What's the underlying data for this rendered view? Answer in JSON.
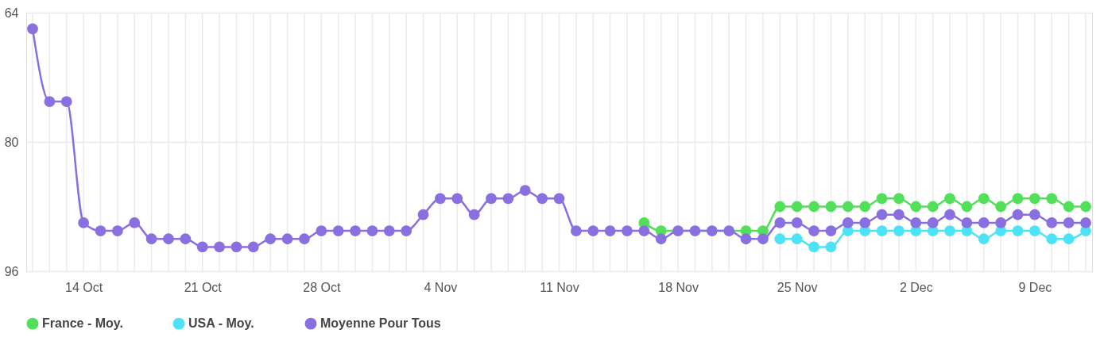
{
  "chart_data": {
    "type": "line",
    "x": [
      "--10-11",
      "--10-12",
      "--10-13",
      "--10-14",
      "--10-15",
      "--10-16",
      "--10-17",
      "--10-18",
      "--10-19",
      "--10-20",
      "--10-21",
      "--10-22",
      "--10-23",
      "--10-24",
      "--10-25",
      "--10-26",
      "--10-27",
      "--10-28",
      "--10-29",
      "--10-30",
      "--10-31",
      "--11-01",
      "--11-02",
      "--11-03",
      "--11-04",
      "--11-05",
      "--11-06",
      "--11-07",
      "--11-08",
      "--11-09",
      "--11-10",
      "--11-11",
      "--11-12",
      "--11-13",
      "--11-14",
      "--11-15",
      "--11-16",
      "--11-17",
      "--11-18",
      "--11-19",
      "--11-20",
      "--11-21",
      "--11-22",
      "--11-23",
      "--11-24",
      "--11-25",
      "--11-26",
      "--11-27",
      "--11-28",
      "--11-29",
      "--11-30",
      "--12-01",
      "--12-02",
      "--12-03",
      "--12-04",
      "--12-05",
      "--12-06",
      "--12-07",
      "--12-08",
      "--12-09",
      "--12-10",
      "--12-11",
      "--12-12"
    ],
    "series": [
      {
        "name": "France - Moy.",
        "color": "#52e05a",
        "values": [
          null,
          null,
          null,
          null,
          null,
          null,
          null,
          null,
          null,
          null,
          null,
          null,
          null,
          null,
          null,
          null,
          null,
          null,
          null,
          null,
          null,
          null,
          null,
          null,
          null,
          null,
          null,
          null,
          null,
          null,
          null,
          null,
          null,
          null,
          null,
          null,
          90,
          91,
          null,
          null,
          null,
          null,
          91,
          91,
          88,
          88,
          88,
          88,
          88,
          88,
          87,
          87,
          88,
          88,
          87,
          88,
          87,
          88,
          87,
          87,
          87,
          88,
          88
        ]
      },
      {
        "name": "USA - Moy.",
        "color": "#4de3f7",
        "values": [
          null,
          null,
          null,
          null,
          null,
          null,
          null,
          null,
          null,
          null,
          null,
          null,
          null,
          null,
          null,
          null,
          null,
          null,
          null,
          null,
          null,
          null,
          null,
          null,
          null,
          null,
          null,
          null,
          null,
          null,
          null,
          null,
          null,
          null,
          null,
          null,
          null,
          null,
          null,
          null,
          null,
          null,
          null,
          null,
          92,
          92,
          93,
          93,
          91,
          91,
          91,
          91,
          91,
          91,
          91,
          91,
          92,
          91,
          91,
          91,
          92,
          92,
          91
        ]
      },
      {
        "name": "Moyenne Pour Tous",
        "color": "#8a6fe0",
        "values": [
          66,
          75,
          75,
          90,
          91,
          91,
          90,
          92,
          92,
          92,
          93,
          93,
          93,
          93,
          92,
          92,
          92,
          91,
          91,
          91,
          91,
          91,
          91,
          89,
          87,
          87,
          89,
          87,
          87,
          86,
          87,
          87,
          91,
          91,
          91,
          91,
          91,
          92,
          91,
          91,
          91,
          91,
          92,
          92,
          90,
          90,
          91,
          91,
          90,
          90,
          89,
          89,
          90,
          90,
          89,
          90,
          90,
          90,
          89,
          89,
          90,
          90,
          90
        ]
      }
    ],
    "xlim": [
      "--10-11",
      "--12-12"
    ],
    "xticks": [
      {
        "value": "--10-14",
        "label": "14 Oct"
      },
      {
        "value": "--10-21",
        "label": "21 Oct"
      },
      {
        "value": "--10-28",
        "label": "28 Oct"
      },
      {
        "value": "--11-04",
        "label": "4 Nov"
      },
      {
        "value": "--11-11",
        "label": "11 Nov"
      },
      {
        "value": "--11-18",
        "label": "18 Nov"
      },
      {
        "value": "--11-25",
        "label": "25 Nov"
      },
      {
        "value": "--12-02",
        "label": "2 Dec"
      },
      {
        "value": "--12-09",
        "label": "9 Dec"
      }
    ],
    "ylim": [
      96,
      64
    ],
    "yticks": [
      64,
      80,
      96
    ],
    "grid": true,
    "legend": "bottom",
    "marker": "circle",
    "line_style": "solid"
  }
}
